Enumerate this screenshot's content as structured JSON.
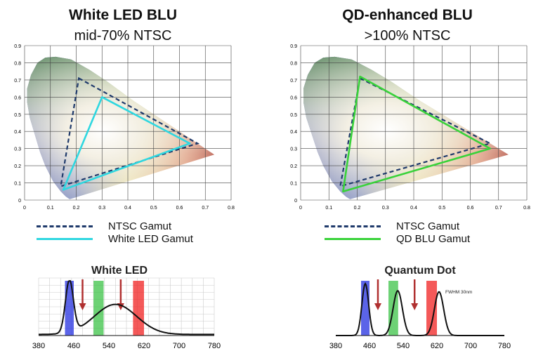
{
  "left": {
    "title": "White LED BLU",
    "subtitle": "mid-70% NTSC",
    "legend": [
      {
        "label": "NTSC Gamut",
        "style": "dashed",
        "color": "#1f3a6b"
      },
      {
        "label": "White LED Gamut",
        "style": "solid",
        "color": "#2fd7e0"
      }
    ],
    "spectrum_label": "White LED"
  },
  "right": {
    "title": "QD-enhanced BLU",
    "subtitle": ">100% NTSC",
    "legend": [
      {
        "label": "NTSC Gamut",
        "style": "dashed",
        "color": "#1f3a6b"
      },
      {
        "label": "QD BLU Gamut",
        "style": "solid",
        "color": "#39d23a"
      }
    ],
    "spectrum_label": "Quantum Dot",
    "annotation": "FWHM 30nm"
  },
  "axes": {
    "cie_ticks_x": [
      "0",
      "0.1",
      "0.2",
      "0.3",
      "0.4",
      "0.5",
      "0.6",
      "0.7",
      "0.8"
    ],
    "cie_ticks_y": [
      "0",
      "0.1",
      "0.2",
      "0.3",
      "0.4",
      "0.5",
      "0.6",
      "0.7",
      "0.8",
      "0.9"
    ],
    "spectrum_ticks": [
      "380",
      "460",
      "540",
      "620",
      "700",
      "780"
    ]
  },
  "colors": {
    "blue_band": "#2430e0",
    "green_band": "#2fbf3a",
    "red_band": "#f02222",
    "arrow": "#b03030"
  }
}
